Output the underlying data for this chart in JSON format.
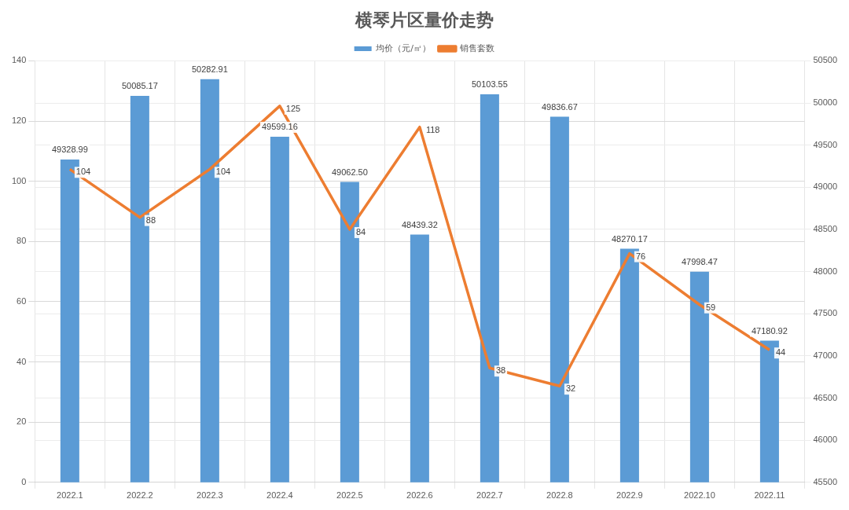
{
  "chart_data": {
    "type": "bar",
    "title": "横琴片区量价走势",
    "categories": [
      "2022.1",
      "2022.2",
      "2022.3",
      "2022.4",
      "2022.5",
      "2022.6",
      "2022.7",
      "2022.8",
      "2022.9",
      "2022.10",
      "2022.11"
    ],
    "series": [
      {
        "name": "均价（元/㎡）",
        "color": "#5b9bd5",
        "axis": "y2",
        "values": [
          49328.99,
          50085.17,
          50282.91,
          49599.16,
          49062.5,
          48439.32,
          50103.55,
          49836.67,
          48270.17,
          47998.47,
          47180.92
        ],
        "value_labels": [
          "49328.99",
          "50085.17",
          "50282.91",
          "49599.16",
          "49062.50",
          "48439.32",
          "50103.55",
          "49836.67",
          "48270.17",
          "47998.47",
          "47180.92"
        ]
      },
      {
        "name": "销售套数",
        "type": "line",
        "color": "#ed7d31",
        "values": [
          104,
          88,
          104,
          125,
          84,
          118,
          38,
          32,
          76,
          59,
          44
        ],
        "value_labels": [
          "104",
          "88",
          "104",
          "125",
          "84",
          "118",
          "38",
          "32",
          "76",
          "59",
          "44"
        ]
      }
    ],
    "ylim": [
      0,
      140
    ],
    "yticks": [
      0,
      20,
      40,
      60,
      80,
      100,
      120,
      140
    ],
    "y2lim": [
      45500,
      50500
    ],
    "y2ticks": [
      45500,
      46000,
      46500,
      47000,
      47500,
      48000,
      48500,
      49000,
      49500,
      50000,
      50500
    ],
    "grid": true,
    "legend": "top",
    "marker": "none",
    "line_style": "solid"
  }
}
